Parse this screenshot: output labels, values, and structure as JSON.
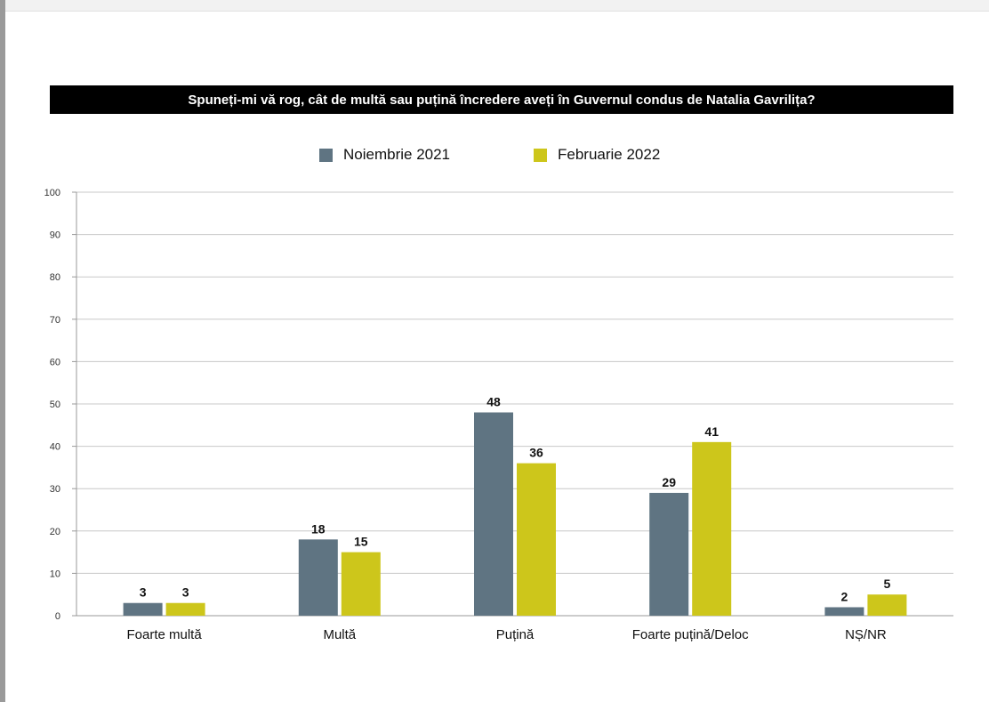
{
  "chart_data": {
    "type": "bar",
    "title": "Spuneți-mi vă rog, cât de multă sau puțină încredere aveți în Guvernul condus de Natalia Gavrilița?",
    "categories": [
      "Foarte multă",
      "Multă",
      "Puțină",
      "Foarte puțină/Deloc",
      "NȘ/NR"
    ],
    "series": [
      {
        "name": "Noiembrie 2021",
        "values": [
          3,
          18,
          48,
          29,
          2
        ],
        "color": "#5f7482"
      },
      {
        "name": "Februarie 2022",
        "values": [
          3,
          15,
          36,
          41,
          5
        ],
        "color": "#cdc61b"
      }
    ],
    "ylim": [
      0,
      100
    ],
    "yticks": [
      0,
      10,
      20,
      30,
      40,
      50,
      60,
      70,
      80,
      90,
      100
    ],
    "grid": true,
    "legend_position": "top-center",
    "xlabel": "",
    "ylabel": ""
  }
}
